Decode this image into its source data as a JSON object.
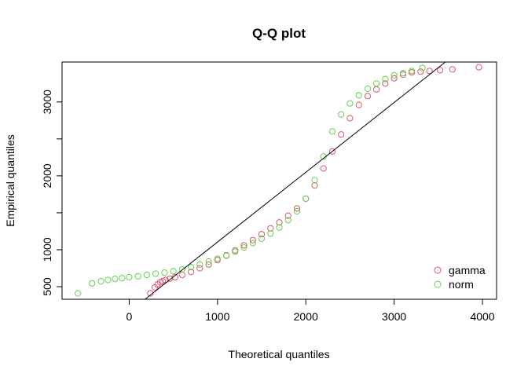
{
  "chart_data": {
    "type": "scatter",
    "title": "Q-Q plot",
    "xlabel": "Theoretical quantiles",
    "ylabel": "Empirical quantiles",
    "xlim": [
      -760,
      4160
    ],
    "ylim": [
      330,
      3540
    ],
    "x_ticks": [
      0,
      1000,
      2000,
      3000,
      4000
    ],
    "y_ticks": [
      500,
      1000,
      1500,
      2000,
      2500,
      3000
    ],
    "y_tick_labels": [
      "500",
      "1000",
      "",
      "2000",
      "",
      "3000"
    ],
    "grid": false,
    "legend_position": "bottom-right",
    "colors": {
      "gamma": "#DF536B",
      "norm": "#61D04F",
      "reference_line": "#000000",
      "axes": "#000000"
    },
    "series": [
      {
        "name": "gamma",
        "points": [
          [
            240,
            410
          ],
          [
            290,
            490
          ],
          [
            320,
            530
          ],
          [
            350,
            560
          ],
          [
            380,
            575
          ],
          [
            410,
            590
          ],
          [
            460,
            610
          ],
          [
            520,
            630
          ],
          [
            600,
            660
          ],
          [
            700,
            700
          ],
          [
            800,
            750
          ],
          [
            900,
            800
          ],
          [
            1000,
            860
          ],
          [
            1100,
            920
          ],
          [
            1200,
            990
          ],
          [
            1300,
            1060
          ],
          [
            1400,
            1130
          ],
          [
            1500,
            1210
          ],
          [
            1600,
            1290
          ],
          [
            1700,
            1370
          ],
          [
            1800,
            1460
          ],
          [
            1900,
            1560
          ],
          [
            2000,
            1690
          ],
          [
            2100,
            1870
          ],
          [
            2200,
            2100
          ],
          [
            2300,
            2330
          ],
          [
            2400,
            2560
          ],
          [
            2500,
            2780
          ],
          [
            2600,
            2960
          ],
          [
            2700,
            3080
          ],
          [
            2800,
            3170
          ],
          [
            2900,
            3250
          ],
          [
            3000,
            3320
          ],
          [
            3100,
            3370
          ],
          [
            3200,
            3400
          ],
          [
            3300,
            3410
          ],
          [
            3400,
            3420
          ],
          [
            3520,
            3430
          ],
          [
            3660,
            3440
          ],
          [
            3960,
            3470
          ]
        ]
      },
      {
        "name": "norm",
        "points": [
          [
            -580,
            410
          ],
          [
            -420,
            545
          ],
          [
            -320,
            575
          ],
          [
            -240,
            590
          ],
          [
            -160,
            605
          ],
          [
            -80,
            615
          ],
          [
            0,
            630
          ],
          [
            100,
            640
          ],
          [
            200,
            660
          ],
          [
            300,
            675
          ],
          [
            400,
            690
          ],
          [
            500,
            710
          ],
          [
            600,
            735
          ],
          [
            700,
            765
          ],
          [
            800,
            800
          ],
          [
            900,
            840
          ],
          [
            1000,
            880
          ],
          [
            1100,
            925
          ],
          [
            1200,
            975
          ],
          [
            1300,
            1030
          ],
          [
            1400,
            1090
          ],
          [
            1500,
            1150
          ],
          [
            1600,
            1220
          ],
          [
            1700,
            1300
          ],
          [
            1800,
            1400
          ],
          [
            1900,
            1520
          ],
          [
            2000,
            1690
          ],
          [
            2100,
            1940
          ],
          [
            2200,
            2260
          ],
          [
            2300,
            2600
          ],
          [
            2400,
            2830
          ],
          [
            2500,
            2980
          ],
          [
            2600,
            3090
          ],
          [
            2700,
            3180
          ],
          [
            2800,
            3250
          ],
          [
            2900,
            3310
          ],
          [
            3000,
            3360
          ],
          [
            3100,
            3390
          ],
          [
            3200,
            3420
          ],
          [
            3320,
            3460
          ]
        ]
      }
    ],
    "reference_line": {
      "x": [
        180,
        3580
      ],
      "y": [
        330,
        3540
      ]
    }
  }
}
